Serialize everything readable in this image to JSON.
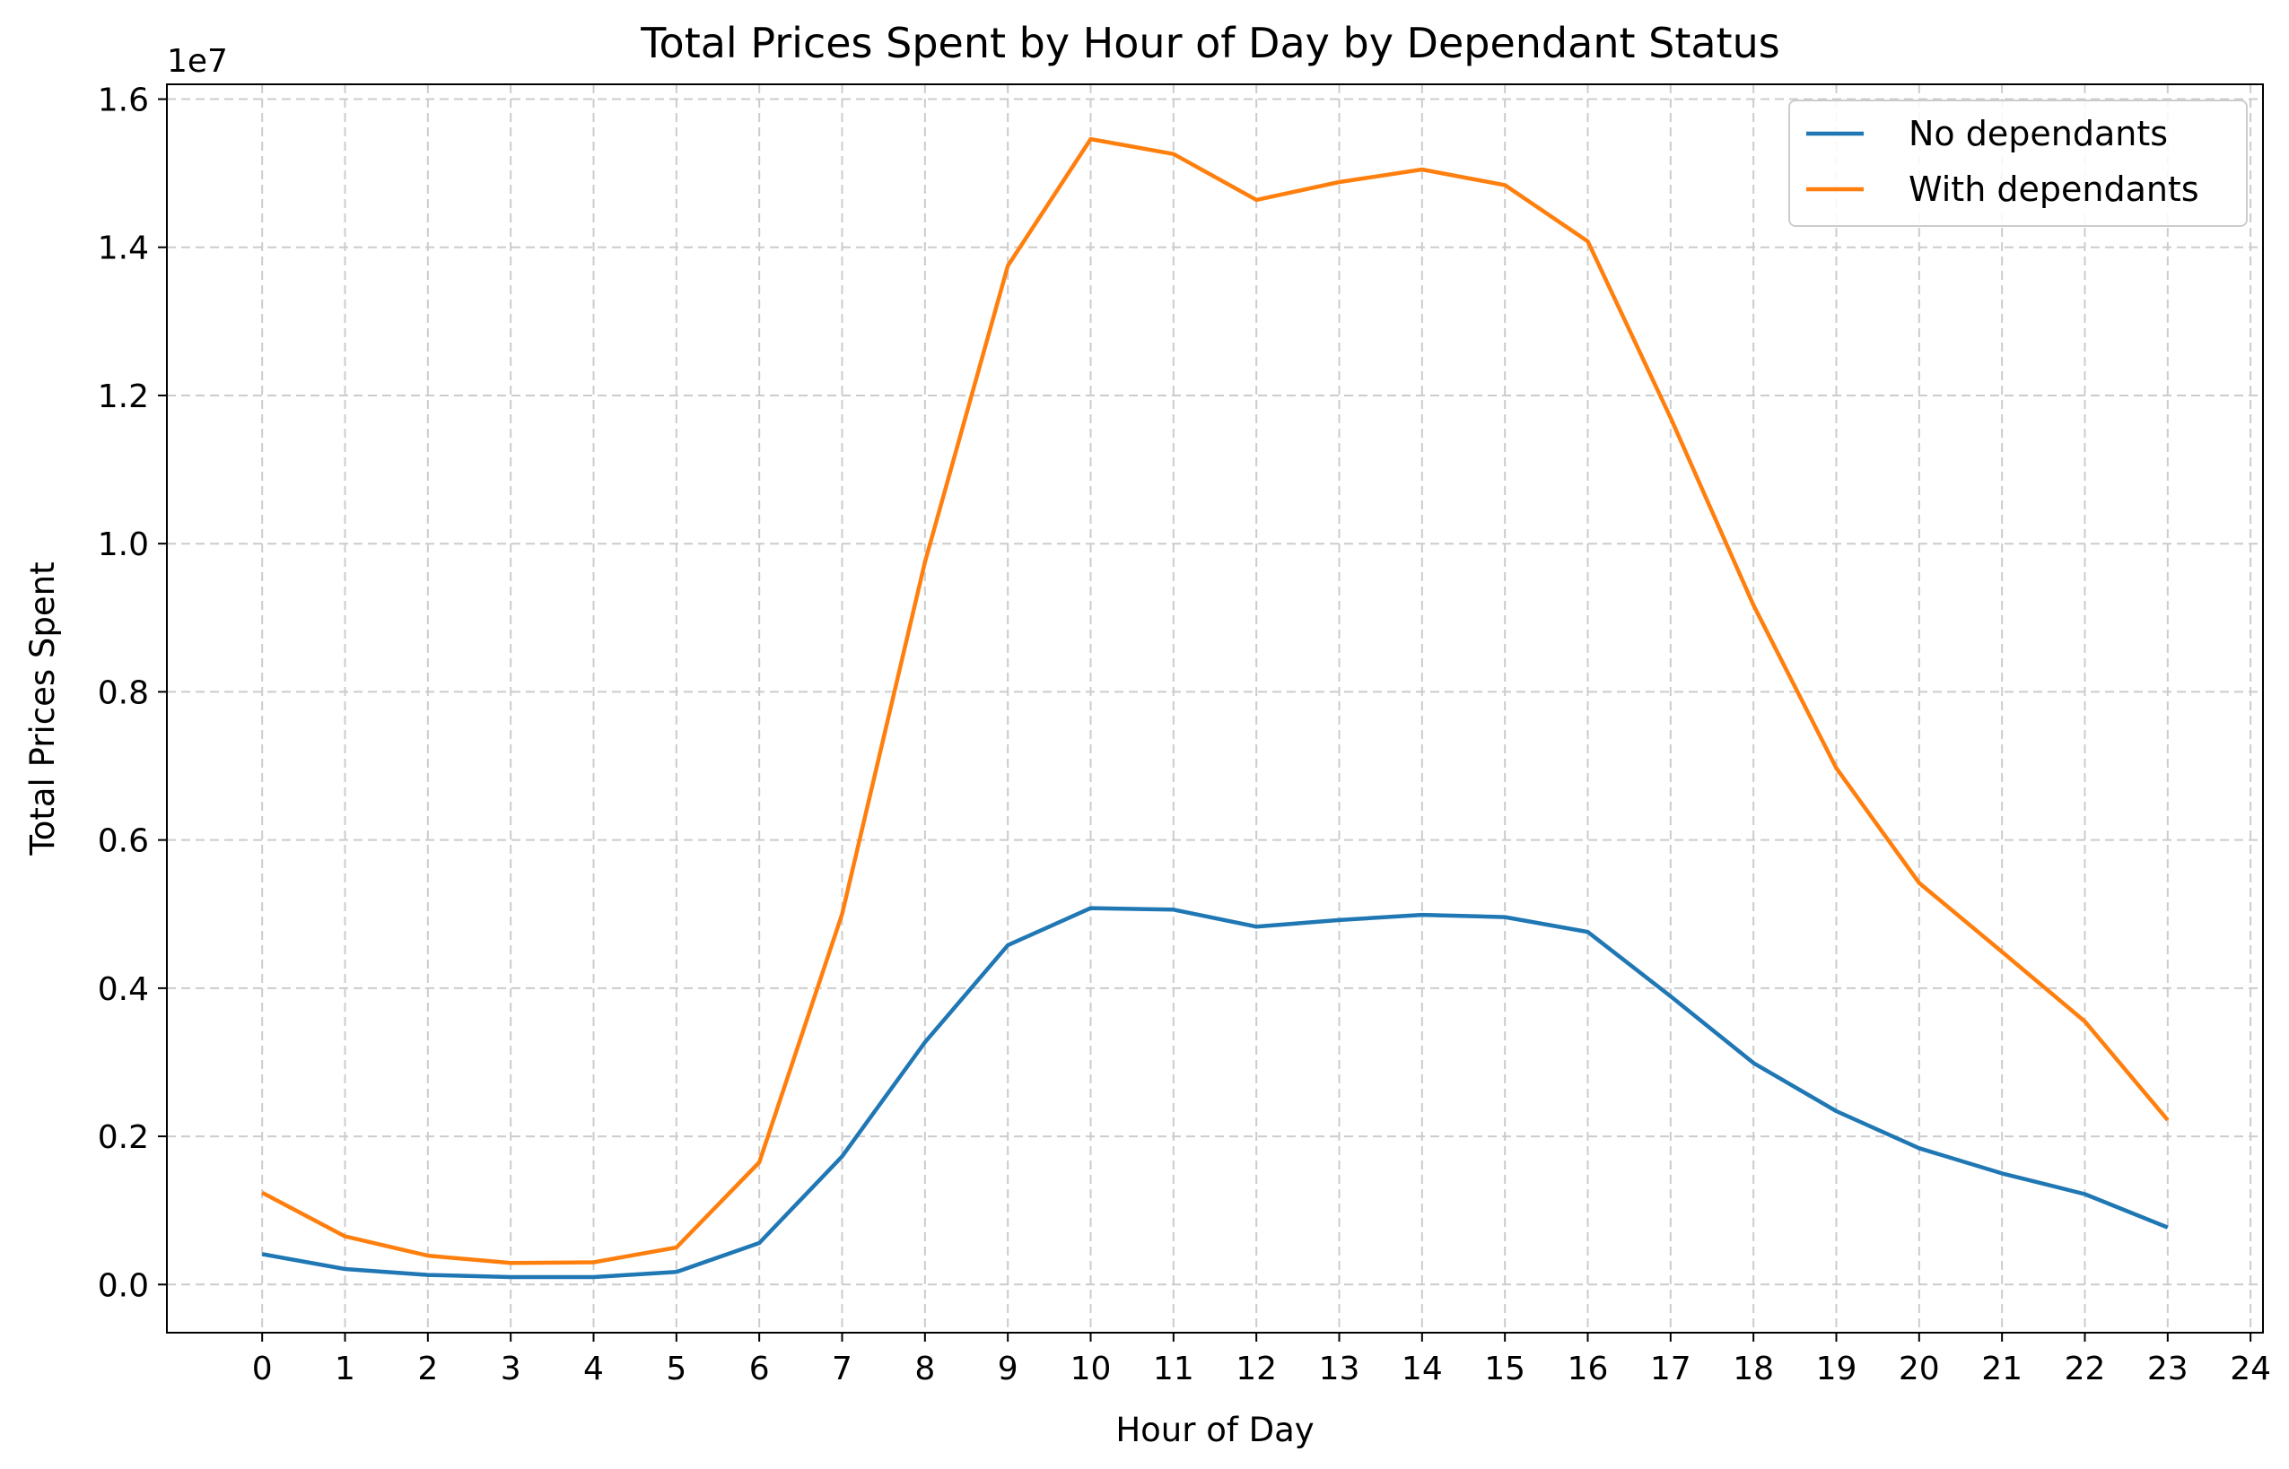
{
  "chart_data": {
    "type": "line",
    "title": "Total Prices Spent by Hour of Day by Dependant Status",
    "xlabel": "Hour of Day",
    "ylabel": "Total Prices Spent",
    "y_offset_label": "1e7",
    "x": [
      0,
      1,
      2,
      3,
      4,
      5,
      6,
      7,
      8,
      9,
      10,
      11,
      12,
      13,
      14,
      15,
      16,
      17,
      18,
      19,
      20,
      21,
      22,
      23
    ],
    "x_ticks": [
      "0",
      "1",
      "2",
      "3",
      "4",
      "5",
      "6",
      "7",
      "8",
      "9",
      "10",
      "11",
      "12",
      "13",
      "14",
      "15",
      "16",
      "17",
      "18",
      "19",
      "20",
      "21",
      "22",
      "23",
      "24"
    ],
    "y_ticks": [
      "0.0",
      "0.2",
      "0.4",
      "0.6",
      "0.8",
      "1.0",
      "1.2",
      "1.4",
      "1.6"
    ],
    "xlim": [
      -1.15,
      24.15
    ],
    "ylim": [
      -0.065,
      1.62
    ],
    "y_unit_multiplier": 10000000,
    "grid": true,
    "legend_position": "upper right",
    "series": [
      {
        "name": "No dependants",
        "color": "#1f77b4",
        "values": [
          0.041,
          0.021,
          0.013,
          0.01,
          0.01,
          0.017,
          0.056,
          0.173,
          0.327,
          0.458,
          0.508,
          0.506,
          0.483,
          0.492,
          0.499,
          0.496,
          0.476,
          0.389,
          0.299,
          0.234,
          0.184,
          0.15,
          0.122,
          0.077
        ]
      },
      {
        "name": "With dependants",
        "color": "#ff7f0e",
        "values": [
          0.124,
          0.065,
          0.039,
          0.029,
          0.03,
          0.05,
          0.165,
          0.5,
          0.975,
          1.375,
          1.546,
          1.526,
          1.464,
          1.488,
          1.505,
          1.484,
          1.408,
          1.17,
          0.917,
          0.697,
          0.542,
          0.449,
          0.355,
          0.222
        ]
      }
    ]
  }
}
